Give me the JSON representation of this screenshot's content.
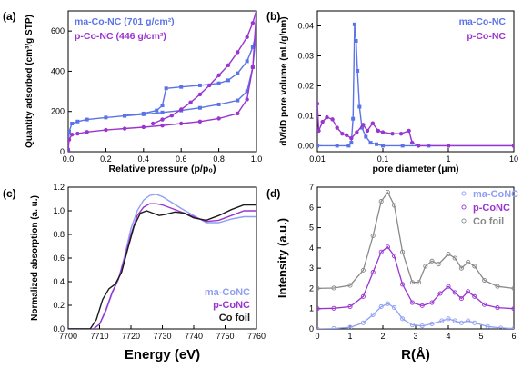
{
  "colors": {
    "blue": "#5b73e8",
    "purple": "#9a35d0",
    "black": "#1a1a1a",
    "light_blue": "#8f9ff2",
    "gray": "#8a8a8a"
  },
  "chart_data": [
    {
      "panel": "(a)",
      "type": "line",
      "xlabel": "Relative pressure (p/p₀)",
      "ylabel": "Quantity adsorbed (cm³/g STP)",
      "xlim": [
        0,
        1.0
      ],
      "ylim": [
        0,
        700
      ],
      "xticks": [
        "0.0",
        "0.2",
        "0.4",
        "0.6",
        "0.8",
        "1.0"
      ],
      "yticks": [
        "0",
        "200",
        "400",
        "600"
      ],
      "legend_position": "top-left",
      "series": [
        {
          "name": "ma-Co-NC (701 g/cm²)",
          "color": "#5b73e8",
          "marker": "square",
          "adsorption": [
            [
              0.0,
              10
            ],
            [
              0.005,
              100
            ],
            [
              0.02,
              140
            ],
            [
              0.05,
              150
            ],
            [
              0.1,
              160
            ],
            [
              0.2,
              170
            ],
            [
              0.3,
              178
            ],
            [
              0.4,
              186
            ],
            [
              0.5,
              195
            ],
            [
              0.6,
              205
            ],
            [
              0.7,
              218
            ],
            [
              0.8,
              235
            ],
            [
              0.9,
              255
            ],
            [
              0.95,
              300
            ],
            [
              0.98,
              420
            ],
            [
              1.0,
              600
            ]
          ],
          "desorption": [
            [
              1.0,
              600
            ],
            [
              0.98,
              520
            ],
            [
              0.95,
              450
            ],
            [
              0.9,
              390
            ],
            [
              0.85,
              355
            ],
            [
              0.8,
              340
            ],
            [
              0.7,
              330
            ],
            [
              0.6,
              322
            ],
            [
              0.52,
              315
            ],
            [
              0.5,
              230
            ],
            [
              0.47,
              205
            ],
            [
              0.4,
              190
            ],
            [
              0.3,
              180
            ]
          ]
        },
        {
          "name": "p-Co-NC (446 g/cm²)",
          "color": "#9a35d0",
          "marker": "circle",
          "adsorption": [
            [
              0.0,
              5
            ],
            [
              0.005,
              60
            ],
            [
              0.02,
              85
            ],
            [
              0.05,
              90
            ],
            [
              0.1,
              98
            ],
            [
              0.2,
              108
            ],
            [
              0.3,
              115
            ],
            [
              0.4,
              122
            ],
            [
              0.5,
              130
            ],
            [
              0.6,
              140
            ],
            [
              0.7,
              150
            ],
            [
              0.8,
              165
            ],
            [
              0.9,
              190
            ],
            [
              0.95,
              260
            ],
            [
              0.98,
              420
            ],
            [
              1.0,
              705
            ]
          ],
          "desorption": [
            [
              1.0,
              705
            ],
            [
              0.98,
              640
            ],
            [
              0.95,
              570
            ],
            [
              0.9,
              495
            ],
            [
              0.85,
              430
            ],
            [
              0.8,
              380
            ],
            [
              0.75,
              330
            ],
            [
              0.7,
              285
            ],
            [
              0.65,
              245
            ],
            [
              0.6,
              210
            ],
            [
              0.55,
              180
            ],
            [
              0.5,
              160
            ],
            [
              0.45,
              140
            ]
          ]
        }
      ]
    },
    {
      "panel": "(b)",
      "type": "line",
      "xlabel": "pore diameter (μm)",
      "ylabel": "dV/dD pore volume (mL/g/nm)",
      "xscale": "log",
      "xlim": [
        0.01,
        10
      ],
      "ylim": [
        -0.002,
        0.045
      ],
      "xticks": [
        "0.01",
        "0.1",
        "1",
        "10"
      ],
      "yticks": [
        "0.00",
        "0.01",
        "0.02",
        "0.03",
        "0.04"
      ],
      "legend_position": "top-right",
      "series": [
        {
          "name": "ma-Co-NC",
          "color": "#5b73e8",
          "marker": "square",
          "points": [
            [
              0.01,
              0.0
            ],
            [
              0.02,
              0.0
            ],
            [
              0.03,
              0.0
            ],
            [
              0.033,
              0.001
            ],
            [
              0.035,
              0.009
            ],
            [
              0.037,
              0.0405
            ],
            [
              0.039,
              0.035
            ],
            [
              0.041,
              0.025
            ],
            [
              0.044,
              0.013
            ],
            [
              0.048,
              0.006
            ],
            [
              0.055,
              0.003
            ],
            [
              0.065,
              0.001
            ],
            [
              0.08,
              0.0005
            ],
            [
              0.1,
              0.0
            ],
            [
              0.2,
              0.0
            ],
            [
              0.5,
              0.0
            ],
            [
              1,
              0.0
            ],
            [
              10,
              0.0
            ]
          ]
        },
        {
          "name": "p-Co-NC",
          "color": "#9a35d0",
          "marker": "circle",
          "points": [
            [
              0.01,
              0.014
            ],
            [
              0.0105,
              0.005
            ],
            [
              0.012,
              0.008
            ],
            [
              0.014,
              0.0095
            ],
            [
              0.017,
              0.0088
            ],
            [
              0.02,
              0.006
            ],
            [
              0.024,
              0.004
            ],
            [
              0.028,
              0.0035
            ],
            [
              0.033,
              0.0025
            ],
            [
              0.04,
              0.0045
            ],
            [
              0.05,
              0.007
            ],
            [
              0.058,
              0.005
            ],
            [
              0.07,
              0.0075
            ],
            [
              0.085,
              0.005
            ],
            [
              0.1,
              0.0045
            ],
            [
              0.14,
              0.004
            ],
            [
              0.19,
              0.004
            ],
            [
              0.25,
              0.005
            ],
            [
              0.28,
              0.001
            ],
            [
              0.35,
              0.0
            ],
            [
              1,
              0.0
            ],
            [
              10,
              0.0
            ]
          ]
        }
      ]
    },
    {
      "panel": "(c)",
      "type": "line",
      "xlabel": "Energy (eV)",
      "ylabel": "Normalized absorption (a. u.)",
      "xlim": [
        7700,
        7760
      ],
      "ylim": [
        0,
        1.2
      ],
      "xticks": [
        "7700",
        "7710",
        "7720",
        "7730",
        "7740",
        "7750",
        "7760"
      ],
      "yticks": [
        "0.0",
        "0.2",
        "0.4",
        "0.6",
        "0.8",
        "1.0",
        "1.2"
      ],
      "legend_position": "bottom-right",
      "series": [
        {
          "name": "ma-CoNC",
          "color": "#8f9ff2",
          "points": [
            [
              7700,
              0
            ],
            [
              7708,
              0
            ],
            [
              7710,
              0.04
            ],
            [
              7712,
              0.15
            ],
            [
              7714,
              0.3
            ],
            [
              7716,
              0.42
            ],
            [
              7718,
              0.62
            ],
            [
              7720,
              0.85
            ],
            [
              7722,
              1.0
            ],
            [
              7724,
              1.09
            ],
            [
              7726,
              1.13
            ],
            [
              7728,
              1.14
            ],
            [
              7730,
              1.12
            ],
            [
              7733,
              1.07
            ],
            [
              7736,
              1.02
            ],
            [
              7740,
              0.96
            ],
            [
              7744,
              0.9
            ],
            [
              7748,
              0.9
            ],
            [
              7752,
              0.93
            ],
            [
              7756,
              0.95
            ],
            [
              7760,
              0.95
            ]
          ]
        },
        {
          "name": "p-CoNC",
          "color": "#9a35d0",
          "points": [
            [
              7700,
              0
            ],
            [
              7708,
              0
            ],
            [
              7710,
              0.04
            ],
            [
              7712,
              0.16
            ],
            [
              7714,
              0.31
            ],
            [
              7716,
              0.42
            ],
            [
              7718,
              0.6
            ],
            [
              7720,
              0.8
            ],
            [
              7722,
              0.96
            ],
            [
              7724,
              1.03
            ],
            [
              7726,
              1.06
            ],
            [
              7728,
              1.06
            ],
            [
              7730,
              1.05
            ],
            [
              7733,
              1.02
            ],
            [
              7736,
              0.99
            ],
            [
              7740,
              0.95
            ],
            [
              7744,
              0.91
            ],
            [
              7748,
              0.92
            ],
            [
              7752,
              0.96
            ],
            [
              7756,
              1.0
            ],
            [
              7760,
              1.0
            ]
          ]
        },
        {
          "name": "Co foil",
          "color": "#1a1a1a",
          "points": [
            [
              7700,
              0
            ],
            [
              7707,
              0
            ],
            [
              7709,
              0.08
            ],
            [
              7711,
              0.25
            ],
            [
              7713,
              0.34
            ],
            [
              7715,
              0.38
            ],
            [
              7717,
              0.48
            ],
            [
              7719,
              0.68
            ],
            [
              7721,
              0.87
            ],
            [
              7723,
              0.98
            ],
            [
              7725,
              1.0
            ],
            [
              7727,
              0.98
            ],
            [
              7729,
              0.96
            ],
            [
              7731,
              0.97
            ],
            [
              7734,
              0.99
            ],
            [
              7737,
              0.98
            ],
            [
              7740,
              0.94
            ],
            [
              7744,
              0.92
            ],
            [
              7748,
              0.96
            ],
            [
              7752,
              1.01
            ],
            [
              7756,
              1.05
            ],
            [
              7760,
              1.05
            ]
          ]
        }
      ]
    },
    {
      "panel": "(d)",
      "type": "line",
      "xlabel": "R(Å)",
      "ylabel": "Intensity (a.u.)",
      "xlim": [
        0,
        6
      ],
      "ylim": [
        0,
        7
      ],
      "xticks": [
        "0",
        "1",
        "2",
        "3",
        "4",
        "5",
        "6"
      ],
      "yticks": [
        "0",
        "1",
        "2",
        "3",
        "4",
        "5",
        "6",
        "7"
      ],
      "legend_position": "top-right",
      "series": [
        {
          "name": "ma-CoNC",
          "color": "#8f9ff2",
          "marker": "open-circle",
          "points": [
            [
              0,
              0
            ],
            [
              0.5,
              0.02
            ],
            [
              1.0,
              0.08
            ],
            [
              1.4,
              0.3
            ],
            [
              1.7,
              0.7
            ],
            [
              1.95,
              1.1
            ],
            [
              2.15,
              1.25
            ],
            [
              2.35,
              1.05
            ],
            [
              2.6,
              0.5
            ],
            [
              2.9,
              0.2
            ],
            [
              3.2,
              0.15
            ],
            [
              3.5,
              0.25
            ],
            [
              3.8,
              0.4
            ],
            [
              4.0,
              0.5
            ],
            [
              4.2,
              0.4
            ],
            [
              4.4,
              0.3
            ],
            [
              4.6,
              0.4
            ],
            [
              4.8,
              0.3
            ],
            [
              5.2,
              0.12
            ],
            [
              5.6,
              0.05
            ],
            [
              6,
              0.02
            ]
          ]
        },
        {
          "name": "p-CoNC",
          "color": "#9a35d0",
          "marker": "open-circle",
          "points": [
            [
              0,
              1.0
            ],
            [
              0.5,
              1.02
            ],
            [
              1.0,
              1.1
            ],
            [
              1.4,
              1.6
            ],
            [
              1.7,
              2.8
            ],
            [
              1.95,
              3.8
            ],
            [
              2.15,
              4.05
            ],
            [
              2.35,
              3.6
            ],
            [
              2.6,
              2.2
            ],
            [
              2.9,
              1.3
            ],
            [
              3.2,
              1.15
            ],
            [
              3.5,
              1.3
            ],
            [
              3.75,
              1.75
            ],
            [
              4.0,
              2.1
            ],
            [
              4.2,
              1.8
            ],
            [
              4.4,
              1.5
            ],
            [
              4.6,
              1.85
            ],
            [
              4.8,
              1.6
            ],
            [
              5.1,
              1.2
            ],
            [
              5.5,
              1.05
            ],
            [
              6,
              1.0
            ]
          ]
        },
        {
          "name": "Co foil",
          "color": "#8a8a8a",
          "marker": "open-circle",
          "points": [
            [
              0,
              2.0
            ],
            [
              0.5,
              2.02
            ],
            [
              1.0,
              2.15
            ],
            [
              1.4,
              2.9
            ],
            [
              1.7,
              4.6
            ],
            [
              1.95,
              6.3
            ],
            [
              2.15,
              6.75
            ],
            [
              2.35,
              6.1
            ],
            [
              2.6,
              3.8
            ],
            [
              2.9,
              2.3
            ],
            [
              3.1,
              2.3
            ],
            [
              3.3,
              3.1
            ],
            [
              3.5,
              3.35
            ],
            [
              3.7,
              3.2
            ],
            [
              4.0,
              3.7
            ],
            [
              4.2,
              3.5
            ],
            [
              4.4,
              3.0
            ],
            [
              4.6,
              3.3
            ],
            [
              4.8,
              3.1
            ],
            [
              5.1,
              2.4
            ],
            [
              5.5,
              2.1
            ],
            [
              6,
              2.0
            ]
          ]
        }
      ]
    }
  ]
}
